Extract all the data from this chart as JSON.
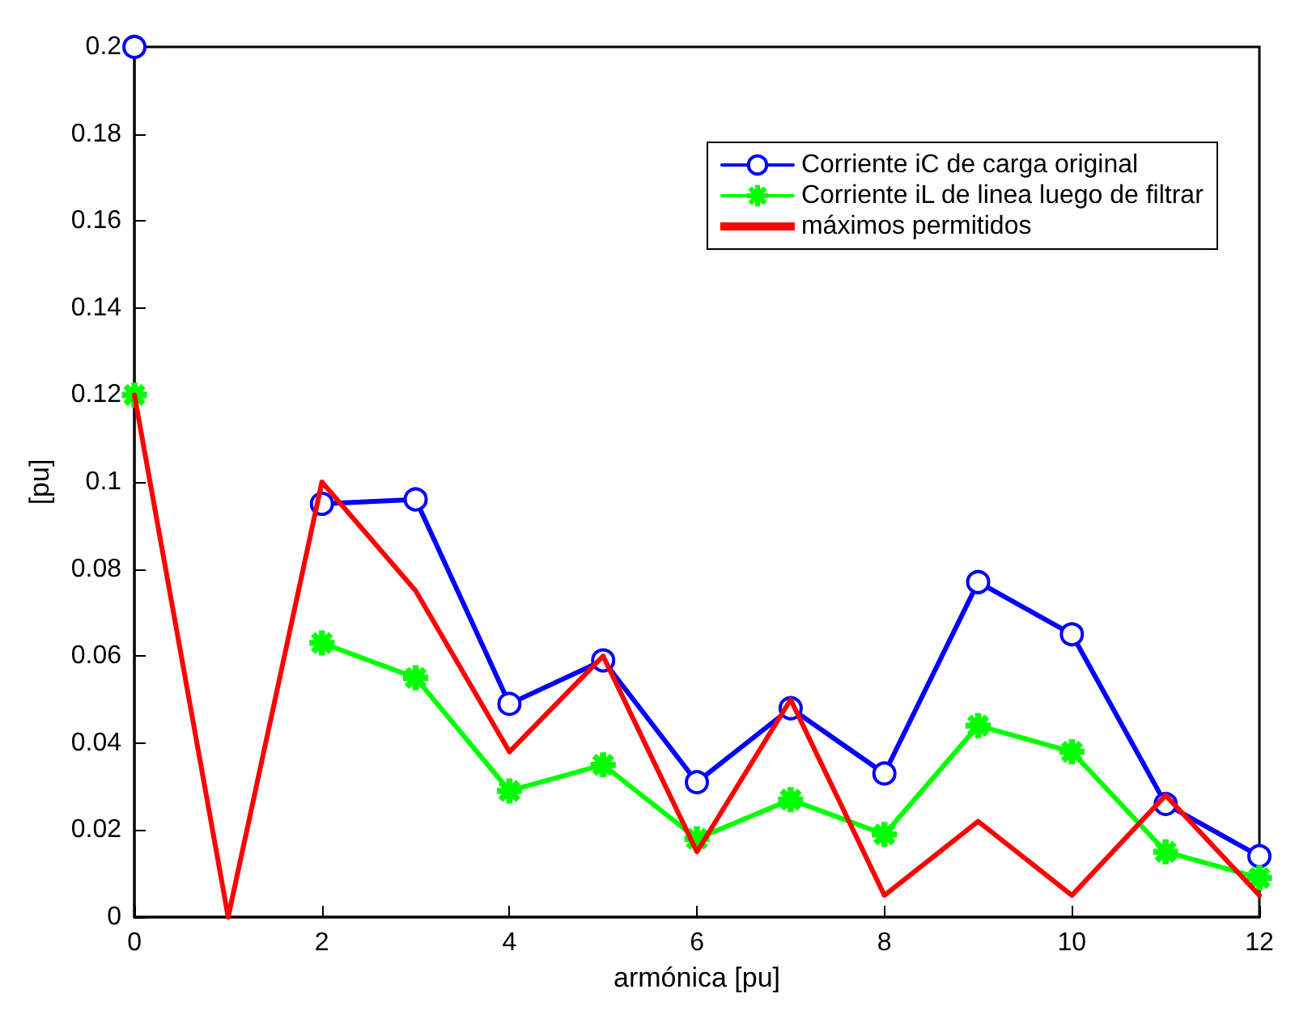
{
  "chart_data": {
    "type": "line",
    "xlabel": "armónica [pu]",
    "ylabel": "[pu]",
    "x": [
      0,
      1,
      2,
      3,
      4,
      5,
      6,
      7,
      8,
      9,
      10,
      11,
      12
    ],
    "xlim": [
      0,
      12
    ],
    "xticks": [
      0,
      2,
      4,
      6,
      8,
      10,
      12
    ],
    "ylim": [
      0,
      0.2
    ],
    "yticks": [
      0,
      0.02,
      0.04,
      0.06,
      0.08,
      0.1,
      0.12,
      0.14,
      0.16,
      0.18,
      0.2
    ],
    "grid": false,
    "legend": "top right",
    "series": [
      {
        "name": "Corriente iC de carga original",
        "color": "#0000ff",
        "marker": "circle",
        "values": [
          0.2,
          null,
          0.095,
          0.096,
          0.049,
          0.059,
          0.031,
          0.048,
          0.033,
          0.077,
          0.065,
          0.026,
          0.014
        ]
      },
      {
        "name": "Corriente iL de linea luego de filtrar",
        "color": "#00ff00",
        "marker": "star",
        "values": [
          0.12,
          null,
          0.063,
          0.055,
          0.029,
          0.035,
          0.018,
          0.027,
          0.019,
          0.044,
          0.038,
          0.015,
          0.009
        ]
      },
      {
        "name": "máximos permitidos",
        "color": "#ff0000",
        "marker": "none",
        "values": [
          0.12,
          0,
          0.1,
          0.075,
          0.038,
          0.06,
          0.015,
          0.05,
          0.005,
          0.022,
          0.005,
          0.028,
          0.005
        ]
      }
    ]
  }
}
